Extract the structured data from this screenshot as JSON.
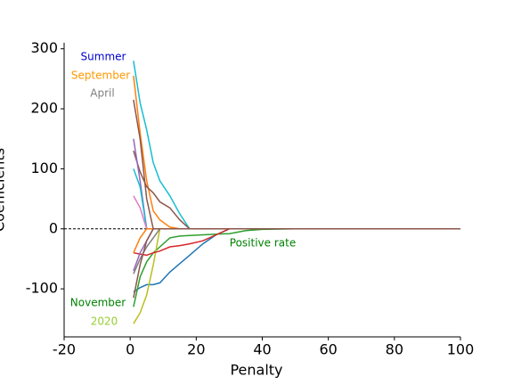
{
  "chart_data": {
    "type": "line",
    "xlabel": "Penalty",
    "ylabel": "Coefficients",
    "x": [
      1,
      3,
      5,
      7,
      9,
      12,
      15,
      18,
      22,
      26,
      30,
      35,
      40,
      50,
      100
    ],
    "xlim": [
      -20,
      100
    ],
    "xticks": [
      -20,
      0,
      20,
      40,
      60,
      80,
      100
    ],
    "ylim": [
      -180,
      310
    ],
    "yticks": [
      -100,
      0,
      100,
      200,
      300
    ],
    "hline": 0,
    "series": [
      {
        "color": "#17becf",
        "values": [
          280,
          210,
          165,
          110,
          80,
          55,
          25,
          0,
          0,
          0,
          0,
          0,
          0,
          0,
          0
        ]
      },
      {
        "color": "#ff7f0e",
        "values": [
          255,
          160,
          80,
          30,
          15,
          3,
          0,
          0,
          0,
          0,
          0,
          0,
          0,
          0,
          0
        ]
      },
      {
        "color": "#8c564b",
        "values": [
          215,
          150,
          50,
          0,
          0,
          0,
          0,
          0,
          0,
          0,
          0,
          0,
          0,
          0,
          0
        ]
      },
      {
        "color": "#8c564b",
        "values": [
          130,
          95,
          70,
          60,
          45,
          35,
          15,
          0,
          0,
          0,
          0,
          0,
          0,
          0,
          0
        ]
      },
      {
        "color": "#9467bd",
        "values": [
          150,
          80,
          0,
          0,
          0,
          0,
          0,
          0,
          0,
          0,
          0,
          0,
          0,
          0,
          0
        ]
      },
      {
        "color": "#17becf",
        "values": [
          100,
          70,
          0,
          0,
          0,
          0,
          0,
          0,
          0,
          0,
          0,
          0,
          0,
          0,
          0
        ]
      },
      {
        "color": "#e377c2",
        "values": [
          55,
          35,
          0,
          0,
          0,
          0,
          0,
          0,
          0,
          0,
          0,
          0,
          0,
          0,
          0
        ]
      },
      {
        "color": "#1f77b4",
        "values": [
          -105,
          -98,
          -93,
          -93,
          -90,
          -72,
          -58,
          -44,
          -25,
          -10,
          0,
          0,
          0,
          0,
          0
        ]
      },
      {
        "color": "#2ca02c",
        "values": [
          -130,
          -80,
          -55,
          -40,
          -30,
          -15,
          -12,
          -11,
          -10,
          -9,
          -8,
          -3,
          -1,
          0,
          0
        ]
      },
      {
        "color": "#bcbd22",
        "values": [
          -158,
          -140,
          -110,
          -60,
          0,
          0,
          0,
          0,
          0,
          0,
          0,
          0,
          0,
          0,
          0
        ]
      },
      {
        "color": "#d62728",
        "values": [
          -40,
          -42,
          -44,
          -40,
          -37,
          -30,
          -28,
          -25,
          -20,
          -10,
          0,
          0,
          0,
          0,
          0
        ]
      },
      {
        "color": "#7f7f7f",
        "values": [
          -75,
          -50,
          -30,
          -15,
          0,
          0,
          0,
          0,
          0,
          0,
          0,
          0,
          0,
          0,
          0
        ]
      },
      {
        "color": "#9467bd",
        "values": [
          -70,
          -40,
          -20,
          0,
          0,
          0,
          0,
          0,
          0,
          0,
          0,
          0,
          0,
          0,
          0
        ]
      },
      {
        "color": "#ff7f0e",
        "values": [
          -40,
          -15,
          0,
          0,
          0,
          0,
          0,
          0,
          0,
          0,
          0,
          0,
          0,
          0,
          0
        ]
      },
      {
        "color": "#8c564b",
        "values": [
          -115,
          -60,
          -20,
          0,
          0,
          0,
          0,
          0,
          0,
          0,
          0,
          0,
          0,
          0,
          0
        ]
      }
    ],
    "annotations": [
      {
        "text": "Summer",
        "color": "#0000cd"
      },
      {
        "text": "September",
        "color": "#ff9900"
      },
      {
        "text": "April",
        "color": "#7f7f7f"
      },
      {
        "text": "November",
        "color": "#008000"
      },
      {
        "text": "2020",
        "color": "#9acd32"
      },
      {
        "text": "Positive rate",
        "color": "#008000"
      }
    ]
  }
}
